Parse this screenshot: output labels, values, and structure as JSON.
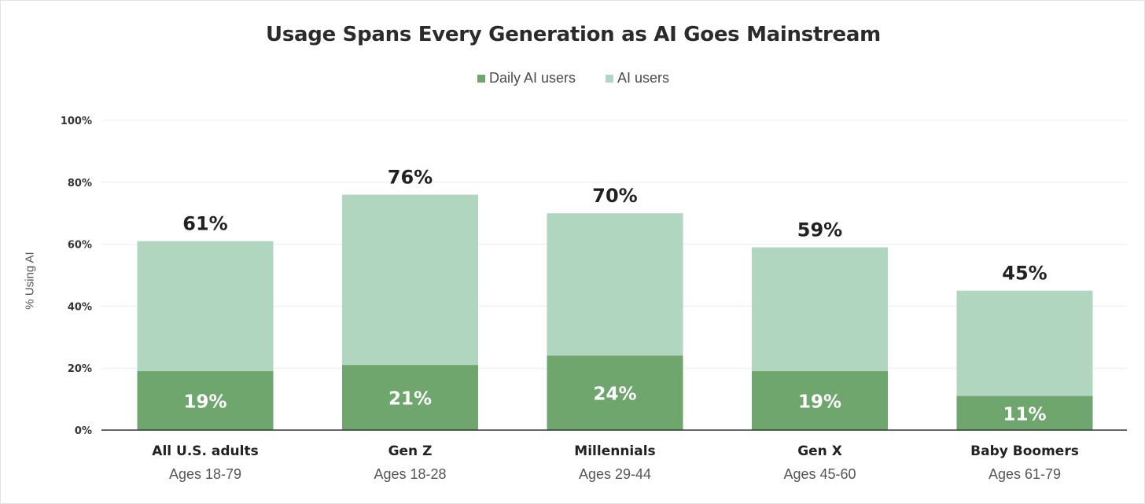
{
  "chart_data": {
    "type": "bar",
    "stacked": true,
    "title": "Usage Spans Every Generation as AI Goes Mainstream",
    "ylabel": "% Using AI",
    "ylim": [
      0,
      100
    ],
    "yticks": [
      "0%",
      "20%",
      "40%",
      "60%",
      "80%",
      "100%"
    ],
    "categories": [
      "All U.S. adults",
      "Gen Z",
      "Millennials",
      "Gen X",
      "Baby Boomers"
    ],
    "category_subtitles": [
      "Ages 18-79",
      "Ages 18-28",
      "Ages 29-44",
      "Ages 45-60",
      "Ages 61-79"
    ],
    "series": [
      {
        "name": "Daily AI users",
        "values": [
          19,
          21,
          24,
          19,
          11
        ],
        "labels": [
          "19%",
          "21%",
          "24%",
          "19%",
          "11%"
        ]
      },
      {
        "name": "AI users",
        "values": [
          61,
          76,
          70,
          59,
          45
        ],
        "labels": [
          "61%",
          "76%",
          "70%",
          "59%",
          "45%"
        ]
      }
    ],
    "legend": [
      "Daily AI users",
      "AI users"
    ],
    "legend_position": "top-center",
    "grid": true
  },
  "colors": {
    "daily": "#6fa66d",
    "ai_users": "#b1d6c0",
    "grid": "#ececec",
    "axis": "#333333"
  }
}
